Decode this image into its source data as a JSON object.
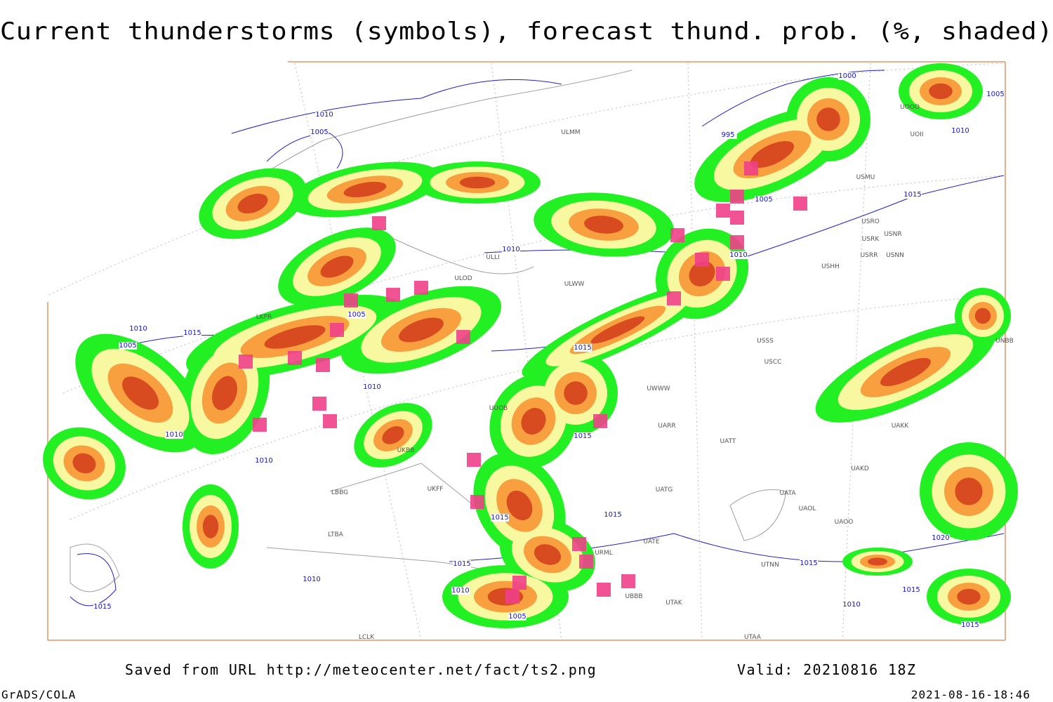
{
  "title": "Current thunderstorms (symbols), forecast thund. prob. (%, shaded)",
  "footer": {
    "source": "Saved from URL http://meteocenter.net/fact/ts2.png",
    "valid": "Valid: 20210816 18Z",
    "software": "GrADS/COLA",
    "timestamp": "2021-08-16-18:46"
  },
  "isobar_labels": [
    "1010",
    "1005",
    "995",
    "1000",
    "1005",
    "1010",
    "1015",
    "1005",
    "1010",
    "1010",
    "1005",
    "1010",
    "1015",
    "1005",
    "1015",
    "1010",
    "1010",
    "1010",
    "1015",
    "1015",
    "1015",
    "1015",
    "1015",
    "1010",
    "1010",
    "1005",
    "1015",
    "1020",
    "1015",
    "1010",
    "1015"
  ],
  "stations": [
    "ULMM",
    "ULLI",
    "ULOD",
    "ULWW",
    "USSS",
    "USCC",
    "UWWW",
    "UARR",
    "UATT",
    "UAKD",
    "UATA",
    "UAOL",
    "UAOO",
    "USHH",
    "USRR",
    "USNN",
    "USRK",
    "USNR",
    "USRO",
    "USMU",
    "UOOO",
    "UOII",
    "UNBB",
    "UAKK",
    "UATE",
    "UBBB",
    "UTAK",
    "UTAA",
    "UTNN",
    "UATG",
    "LBBG",
    "LTBA",
    "LCLK",
    "UKFF",
    "UKBB",
    "UUOB",
    "URML",
    "LKPR"
  ]
}
